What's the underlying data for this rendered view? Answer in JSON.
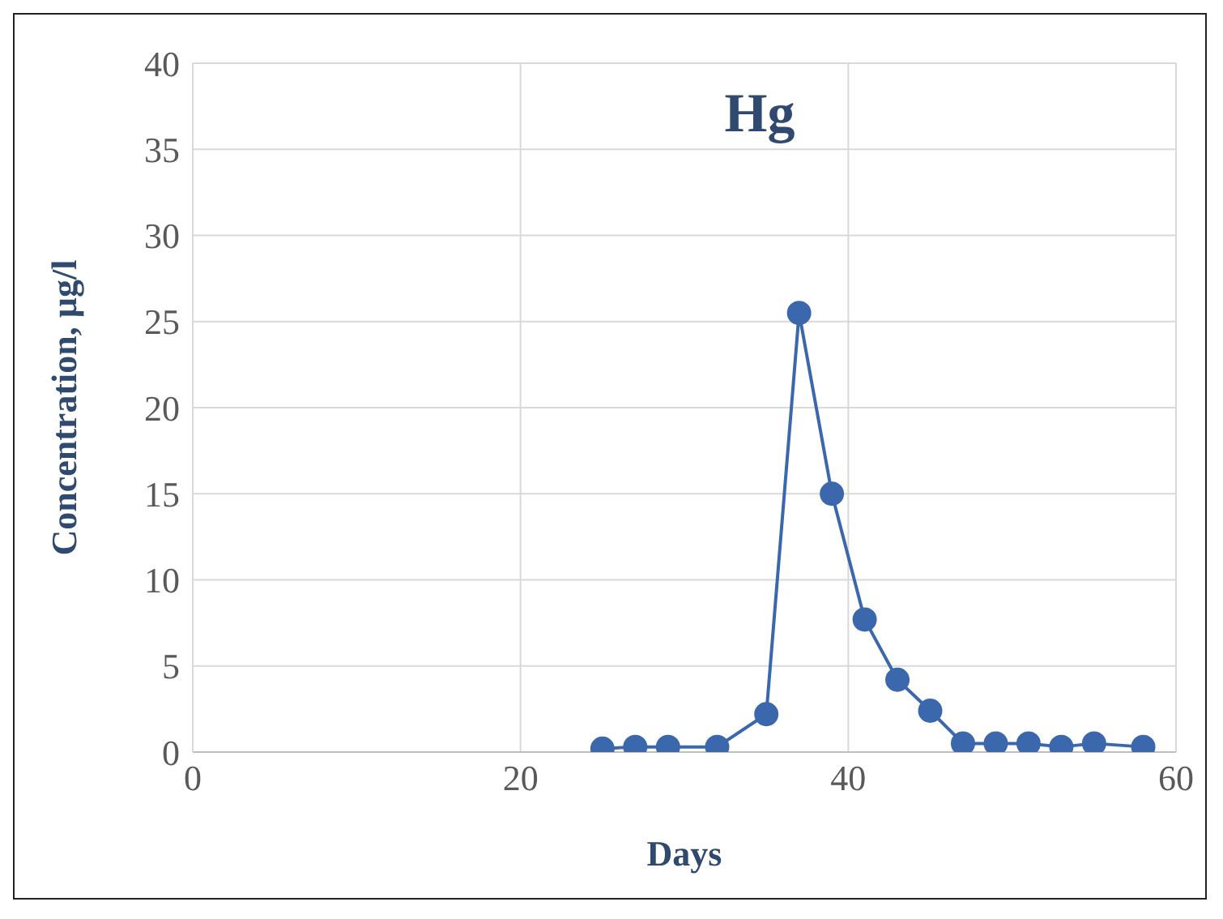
{
  "chart_data": {
    "type": "line",
    "title": "Hg",
    "xlabel": "Days",
    "ylabel": "Concentration, µg/l",
    "x": [
      25,
      27,
      29,
      32,
      35,
      37,
      39,
      41,
      43,
      45,
      47,
      49,
      51,
      53,
      55,
      58
    ],
    "series": [
      {
        "color": "#3b68ad",
        "values": [
          0.2,
          0.3,
          0.3,
          0.3,
          2.2,
          25.5,
          15,
          7.7,
          4.2,
          2.4,
          0.5,
          0.5,
          0.5,
          0.3,
          0.5,
          0.3
        ]
      }
    ],
    "xlim": [
      0,
      60
    ],
    "xticks": [
      0,
      20,
      40,
      60
    ],
    "ylim": [
      0,
      40
    ],
    "yticks": [
      0,
      5,
      10,
      15,
      20,
      25,
      30,
      35,
      40
    ],
    "grid": true,
    "marker": "circle",
    "line_style": "solid"
  }
}
